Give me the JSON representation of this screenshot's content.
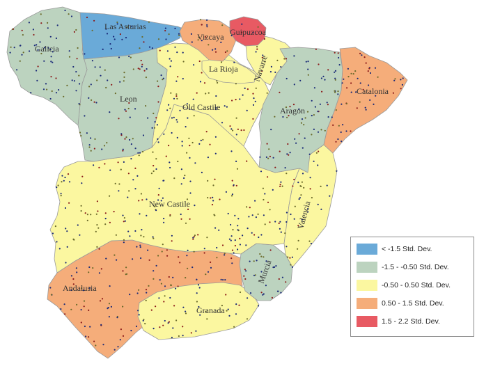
{
  "map": {
    "colors": {
      "very_low": "#6aaad8",
      "low": "#bcd3bf",
      "average": "#fbf7a0",
      "high": "#f5ad7a",
      "very_high": "#e85a63",
      "point_dark": "#1b2a78",
      "point_red": "#8b1a1a",
      "point_olive": "#6a6a2a"
    },
    "regions": [
      {
        "id": "galicia",
        "label": "Galicia",
        "class": "low"
      },
      {
        "id": "las-asturias",
        "label": "Las Asturias",
        "class": "very_low"
      },
      {
        "id": "vizcaya",
        "label": "Vizcaya",
        "class": "high"
      },
      {
        "id": "guipuzcoa",
        "label": "Guipuzcoa",
        "class": "very_high"
      },
      {
        "id": "navarre",
        "label": "Navarre",
        "class": "average"
      },
      {
        "id": "la-rioja",
        "label": "La Rioja",
        "class": "average"
      },
      {
        "id": "leon",
        "label": "Leon",
        "class": "low"
      },
      {
        "id": "old-castile",
        "label": "Old Castile",
        "class": "average"
      },
      {
        "id": "aragon",
        "label": "Aragon",
        "class": "low"
      },
      {
        "id": "catalonia",
        "label": "Catalonia",
        "class": "high"
      },
      {
        "id": "new-castile",
        "label": "New Castile",
        "class": "average"
      },
      {
        "id": "valencia",
        "label": "Valencia",
        "class": "average"
      },
      {
        "id": "murcia",
        "label": "Murcia",
        "class": "low"
      },
      {
        "id": "andalusia",
        "label": "Andalusia",
        "class": "high"
      },
      {
        "id": "granada",
        "label": "Granada",
        "class": "average"
      }
    ]
  },
  "legend": {
    "items": [
      {
        "label": "< -1.5 Std. Dev.",
        "color": "#6aaad8"
      },
      {
        "label": "-1.5 - -0.50 Std. Dev.",
        "color": "#bcd3bf"
      },
      {
        "label": "-0.50 - 0.50 Std. Dev.",
        "color": "#fbf7a0"
      },
      {
        "label": "0.50 - 1.5 Std. Dev.",
        "color": "#f5ad7a"
      },
      {
        "label": "1.5 - 2.2 Std. Dev.",
        "color": "#e85a63"
      }
    ]
  }
}
